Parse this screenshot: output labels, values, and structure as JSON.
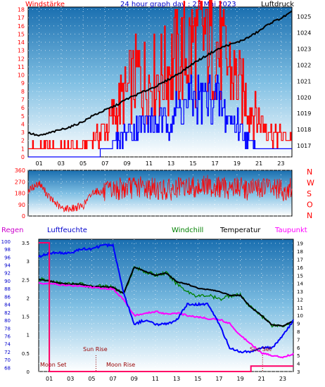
{
  "header": {
    "left_label": "Windstärke",
    "title": "24 hour graph day : 23 Mai 2023",
    "right_label": "Luftdruck"
  },
  "lower_header": {
    "regen": "Regen",
    "luftfeuchte": "Luftfeuchte",
    "windchill": "Windchill",
    "temperatur": "Temperatur",
    "taupunkt": "Taupunkt"
  },
  "colors": {
    "wind": "#ff0000",
    "gust": "#0000ff",
    "pressure": "#000000",
    "direction": "#ff0000",
    "humidity": "#0000ff",
    "windchill": "#008000",
    "temperature": "#000000",
    "dewpoint": "#ff00ff",
    "rain": "#ff0066",
    "astro": "#990000"
  },
  "astro": {
    "moon_set": "Moon Set",
    "sun_rise": "Sun Rise",
    "moon_rise": "Moon Rise",
    "sun_set": "Sun Set"
  },
  "chart_data": [
    {
      "type": "line",
      "name": "wind_and_pressure",
      "x_ticks": [
        "01",
        "03",
        "05",
        "07",
        "09",
        "11",
        "13",
        "15",
        "17",
        "19",
        "21",
        "23"
      ],
      "y_left_ticks": [
        "0",
        "1",
        "2",
        "3",
        "4",
        "5",
        "6",
        "7",
        "8",
        "9",
        "10",
        "11",
        "12",
        "13",
        "14",
        "15",
        "16",
        "17",
        "18"
      ],
      "y_right_ticks": [
        "1017",
        "1018",
        "1019",
        "1020",
        "1021",
        "1022",
        "1023",
        "1024",
        "1025"
      ],
      "ylim_left": [
        0,
        18.3
      ],
      "ylim_right": [
        1016.3,
        1025.6
      ],
      "x": [
        0,
        1,
        2,
        3,
        4,
        5,
        6,
        7,
        8,
        9,
        10,
        11,
        12,
        13,
        14,
        15,
        16,
        17,
        18,
        19,
        20,
        21,
        22,
        23,
        24
      ],
      "series": [
        {
          "name": "Luftdruck",
          "axis": "right",
          "values": [
            1017.8,
            1017.6,
            1017.8,
            1018.0,
            1018.2,
            1018.5,
            1018.9,
            1019.2,
            1019.5,
            1019.9,
            1020.2,
            1020.5,
            1020.8,
            1021.2,
            1021.6,
            1022.1,
            1022.5,
            1022.9,
            1023.2,
            1023.4,
            1023.7,
            1024.1,
            1024.6,
            1024.9,
            1025.3
          ]
        },
        {
          "name": "Windstärke",
          "axis": "left",
          "values": [
            1,
            1,
            1,
            1,
            1,
            1,
            2,
            3,
            5,
            7,
            9,
            8,
            9,
            10,
            11,
            12,
            13,
            12,
            10,
            8,
            6,
            4,
            3,
            2,
            2
          ]
        },
        {
          "name": "Böen",
          "axis": "left",
          "values": [
            0,
            0,
            0,
            0,
            0,
            0,
            0,
            1,
            2,
            3,
            4,
            4,
            4,
            5,
            6,
            7,
            7,
            7,
            5,
            4,
            2,
            1,
            1,
            1,
            1
          ]
        }
      ]
    },
    {
      "type": "line",
      "name": "wind_direction",
      "x_ticks": [
        "01",
        "03",
        "05",
        "07",
        "09",
        "11",
        "13",
        "15",
        "17",
        "19",
        "21",
        "23"
      ],
      "y_ticks": [
        "0",
        "90",
        "180",
        "270",
        "360"
      ],
      "compass": [
        "N",
        "W",
        "S",
        "O",
        "N"
      ],
      "ylim": [
        0,
        360
      ],
      "x": [
        0,
        1,
        2,
        3,
        4,
        5,
        6,
        7,
        8,
        9,
        10,
        11,
        12,
        13,
        14,
        15,
        16,
        17,
        18,
        19,
        20,
        21,
        22,
        23,
        24
      ],
      "values": [
        200,
        260,
        140,
        60,
        60,
        80,
        200,
        180,
        210,
        220,
        230,
        220,
        210,
        200,
        220,
        230,
        240,
        230,
        220,
        230,
        210,
        220,
        230,
        200,
        210
      ]
    },
    {
      "type": "line",
      "name": "temperature_humidity_rain",
      "x_ticks": [
        "01",
        "03",
        "05",
        "07",
        "09",
        "11",
        "13",
        "15",
        "17",
        "19",
        "21",
        "23"
      ],
      "y_humidity_ticks": [
        "68",
        "70",
        "72",
        "74",
        "76",
        "78",
        "80",
        "82",
        "84",
        "86",
        "88",
        "90",
        "92",
        "94",
        "96",
        "98",
        "100"
      ],
      "y_rain_ticks": [
        "0",
        "0.5",
        "1",
        "1.5",
        "2",
        "2.5",
        "3",
        "3.5"
      ],
      "y_temp_ticks": [
        "3",
        "4",
        "5",
        "6",
        "7",
        "8",
        "9",
        "10",
        "11",
        "12",
        "13",
        "14",
        "15",
        "16",
        "17",
        "18",
        "19"
      ],
      "ylim_humidity": [
        67,
        100.5
      ],
      "ylim_temp": [
        3,
        19.5
      ],
      "x": [
        0,
        1,
        2,
        3,
        4,
        5,
        6,
        7,
        8,
        9,
        10,
        11,
        12,
        13,
        14,
        15,
        16,
        17,
        18,
        19,
        20,
        21,
        22,
        23,
        24
      ],
      "series": [
        {
          "name": "Luftfeuchte",
          "values": [
            96,
            97,
            97,
            97,
            98,
            98,
            99,
            99,
            87,
            79,
            80,
            79,
            79,
            80,
            84,
            84,
            84,
            79,
            73,
            72,
            72,
            73,
            73,
            76,
            80
          ]
        },
        {
          "name": "Temperatur",
          "values": [
            14.5,
            14.3,
            14.0,
            13.9,
            13.9,
            13.6,
            13.6,
            13.5,
            12.7,
            16.0,
            15.5,
            15.0,
            15.3,
            14.2,
            13.9,
            13.4,
            13.2,
            13.0,
            12.5,
            12.5,
            11.0,
            10.0,
            8.8,
            8.7,
            9.3
          ]
        },
        {
          "name": "Windchill",
          "values": [
            14.5,
            14.3,
            14.0,
            13.9,
            13.9,
            13.6,
            13.6,
            13.5,
            12.7,
            16.0,
            15.5,
            15.0,
            15.3,
            14.0,
            13.0,
            12.4,
            12.5,
            12.0,
            12.5,
            12.5,
            11.0,
            10.0,
            8.8,
            8.7,
            9.3
          ]
        },
        {
          "name": "Taupunkt",
          "values": [
            14.0,
            14.0,
            13.8,
            13.7,
            13.7,
            13.5,
            13.4,
            13.3,
            12.0,
            10.0,
            10.2,
            10.5,
            10.2,
            10.3,
            10.0,
            9.8,
            9.6,
            9.5,
            9.0,
            7.5,
            6.5,
            5.3,
            5.0,
            4.8,
            5.2
          ]
        },
        {
          "name": "Regen",
          "values": [
            3.5,
            0,
            0,
            0,
            0,
            0,
            0,
            0,
            0,
            0,
            0,
            0,
            0,
            0,
            0,
            0,
            0,
            0,
            0,
            0,
            0.15,
            0.15,
            0.15,
            0.15,
            0.15
          ]
        }
      ]
    }
  ]
}
